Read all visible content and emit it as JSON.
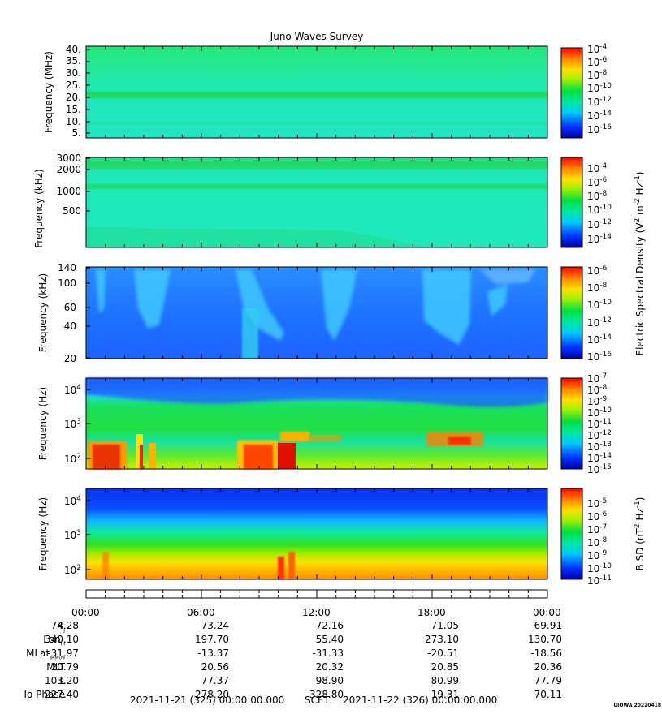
{
  "title": "Juno Waves Survey",
  "colors": {
    "plot_bg_cyan": "#1fe8b8",
    "band_green": "#22d870",
    "low_blue": "#1d6fff",
    "hot_red": "#ff1a00"
  },
  "panels": [
    {
      "ylabel": "Frequency (MHz)",
      "yticks": [
        "40.",
        "35.",
        "30.",
        "25.",
        "20.",
        "15.",
        "10.",
        "5."
      ],
      "colorbar_ticks": [
        {
          "base": "10",
          "exp": "-4"
        },
        {
          "base": "10",
          "exp": "-6"
        },
        {
          "base": "10",
          "exp": "-8"
        },
        {
          "base": "10",
          "exp": "-10"
        },
        {
          "base": "10",
          "exp": "-12"
        },
        {
          "base": "10",
          "exp": "-14"
        },
        {
          "base": "10",
          "exp": "-16"
        }
      ]
    },
    {
      "ylabel": "Frequency (kHz)",
      "yticks": [
        "3000",
        "2000",
        "1000",
        "500"
      ],
      "colorbar_ticks": [
        {
          "base": "10",
          "exp": "-4"
        },
        {
          "base": "10",
          "exp": "-6"
        },
        {
          "base": "10",
          "exp": "-8"
        },
        {
          "base": "10",
          "exp": "-10"
        },
        {
          "base": "10",
          "exp": "-12"
        },
        {
          "base": "10",
          "exp": "-14"
        }
      ]
    },
    {
      "ylabel": "Frequency (kHz)",
      "yticks": [
        "140",
        "100",
        "60",
        "40",
        "20"
      ],
      "colorbar_ticks": [
        {
          "base": "10",
          "exp": "-6"
        },
        {
          "base": "10",
          "exp": "-8"
        },
        {
          "base": "10",
          "exp": "-10"
        },
        {
          "base": "10",
          "exp": "-12"
        },
        {
          "base": "10",
          "exp": "-14"
        },
        {
          "base": "10",
          "exp": "-16"
        }
      ]
    },
    {
      "ylabel": "Frequency (Hz)",
      "yticks": [
        {
          "base": "10",
          "exp": "4"
        },
        {
          "base": "10",
          "exp": "3"
        },
        {
          "base": "10",
          "exp": "2"
        }
      ],
      "colorbar_ticks": [
        {
          "base": "10",
          "exp": "-7"
        },
        {
          "base": "10",
          "exp": "-8"
        },
        {
          "base": "10",
          "exp": "-9"
        },
        {
          "base": "10",
          "exp": "-10"
        },
        {
          "base": "10",
          "exp": "-11"
        },
        {
          "base": "10",
          "exp": "-12"
        },
        {
          "base": "10",
          "exp": "-13"
        },
        {
          "base": "10",
          "exp": "-14"
        },
        {
          "base": "10",
          "exp": "-15"
        }
      ]
    },
    {
      "ylabel": "Frequency (Hz)",
      "yticks": [
        {
          "base": "10",
          "exp": "4"
        },
        {
          "base": "10",
          "exp": "3"
        },
        {
          "base": "10",
          "exp": "2"
        }
      ],
      "colorbar_ticks": [
        {
          "base": "10",
          "exp": "-5"
        },
        {
          "base": "10",
          "exp": "-6"
        },
        {
          "base": "10",
          "exp": "-7"
        },
        {
          "base": "10",
          "exp": "-8"
        },
        {
          "base": "10",
          "exp": "-9"
        },
        {
          "base": "10",
          "exp": "-10"
        },
        {
          "base": "10",
          "exp": "-11"
        }
      ]
    }
  ],
  "colorbar_label_electric": {
    "text": "Electric Spectral Density (V",
    "sup1": "2",
    "mid": " m",
    "sup2": "-2",
    "mid2": " Hz",
    "sup3": "-1",
    "end": ")"
  },
  "colorbar_label_magnetic": {
    "text": "B SD (nT",
    "sup1": "2",
    "mid": " Hz",
    "sup2": "-1",
    "end": ")"
  },
  "time_labels": [
    "00:00",
    "06:00",
    "12:00",
    "18:00",
    "00:00"
  ],
  "ephemeris": [
    {
      "label": "R",
      "sub": "J",
      "values": [
        "74.28",
        "73.24",
        "72.16",
        "71.05",
        "69.91"
      ]
    },
    {
      "label": "Lon",
      "sub": "III",
      "values": [
        "340.10",
        "197.70",
        "55.40",
        "273.10",
        "130.70"
      ]
    },
    {
      "label": "MLat",
      "sub": "JRM09",
      "values": [
        "-31.97",
        "-13.37",
        "-31.33",
        "-20.51",
        "-18.56"
      ]
    },
    {
      "label": "MLT",
      "sub": "",
      "values": [
        "20.79",
        "20.56",
        "20.32",
        "20.85",
        "20.36"
      ]
    },
    {
      "label": "L",
      "sub": "",
      "values": [
        "103.20",
        "77.37",
        "98.90",
        "80.99",
        "77.79"
      ]
    },
    {
      "label": "Io Phase",
      "sub": "",
      "values": [
        "227.40",
        "278.20",
        "328.80",
        "19.31",
        "70.11"
      ]
    }
  ],
  "footer": {
    "start": "2021-11-21 (325) 00:00:00.000",
    "scet": "SCET",
    "end": "2021-11-22 (326) 00:00:00.000",
    "stamp": "UIOWA 20220418"
  },
  "chart_data": [
    {
      "type": "heatmap",
      "title": "Juno Waves Survey",
      "ylabel": "Frequency (MHz)",
      "ylim": [
        4,
        41
      ],
      "x": [
        "00:00",
        "06:00",
        "12:00",
        "18:00",
        "00:00"
      ],
      "colorbar": "Electric Spectral Density",
      "colorbar_range": [
        1e-17,
        0.0001
      ]
    },
    {
      "type": "heatmap",
      "ylabel": "Frequency (kHz)",
      "ylim": [
        150,
        3000
      ],
      "x": [
        "00:00",
        "06:00",
        "12:00",
        "18:00",
        "00:00"
      ],
      "colorbar": "Electric Spectral Density",
      "colorbar_range": [
        1e-15,
        0.0001
      ]
    },
    {
      "type": "heatmap",
      "ylabel": "Frequency (kHz)",
      "ylim": [
        20,
        140
      ],
      "x": [
        "00:00",
        "06:00",
        "12:00",
        "18:00",
        "00:00"
      ],
      "colorbar": "Electric Spectral Density",
      "colorbar_range": [
        1e-16,
        1e-06
      ]
    },
    {
      "type": "heatmap",
      "ylabel": "Frequency (Hz)",
      "ylim": [
        50,
        20000
      ],
      "x": [
        "00:00",
        "06:00",
        "12:00",
        "18:00",
        "00:00"
      ],
      "colorbar": "Electric Spectral Density",
      "colorbar_range": [
        1e-15,
        1e-07
      ]
    },
    {
      "type": "heatmap",
      "ylabel": "Frequency (Hz)",
      "ylim": [
        50,
        20000
      ],
      "x": [
        "00:00",
        "06:00",
        "12:00",
        "18:00",
        "00:00"
      ],
      "colorbar": "B SD",
      "colorbar_range": [
        1e-11,
        0.0001
      ]
    }
  ]
}
